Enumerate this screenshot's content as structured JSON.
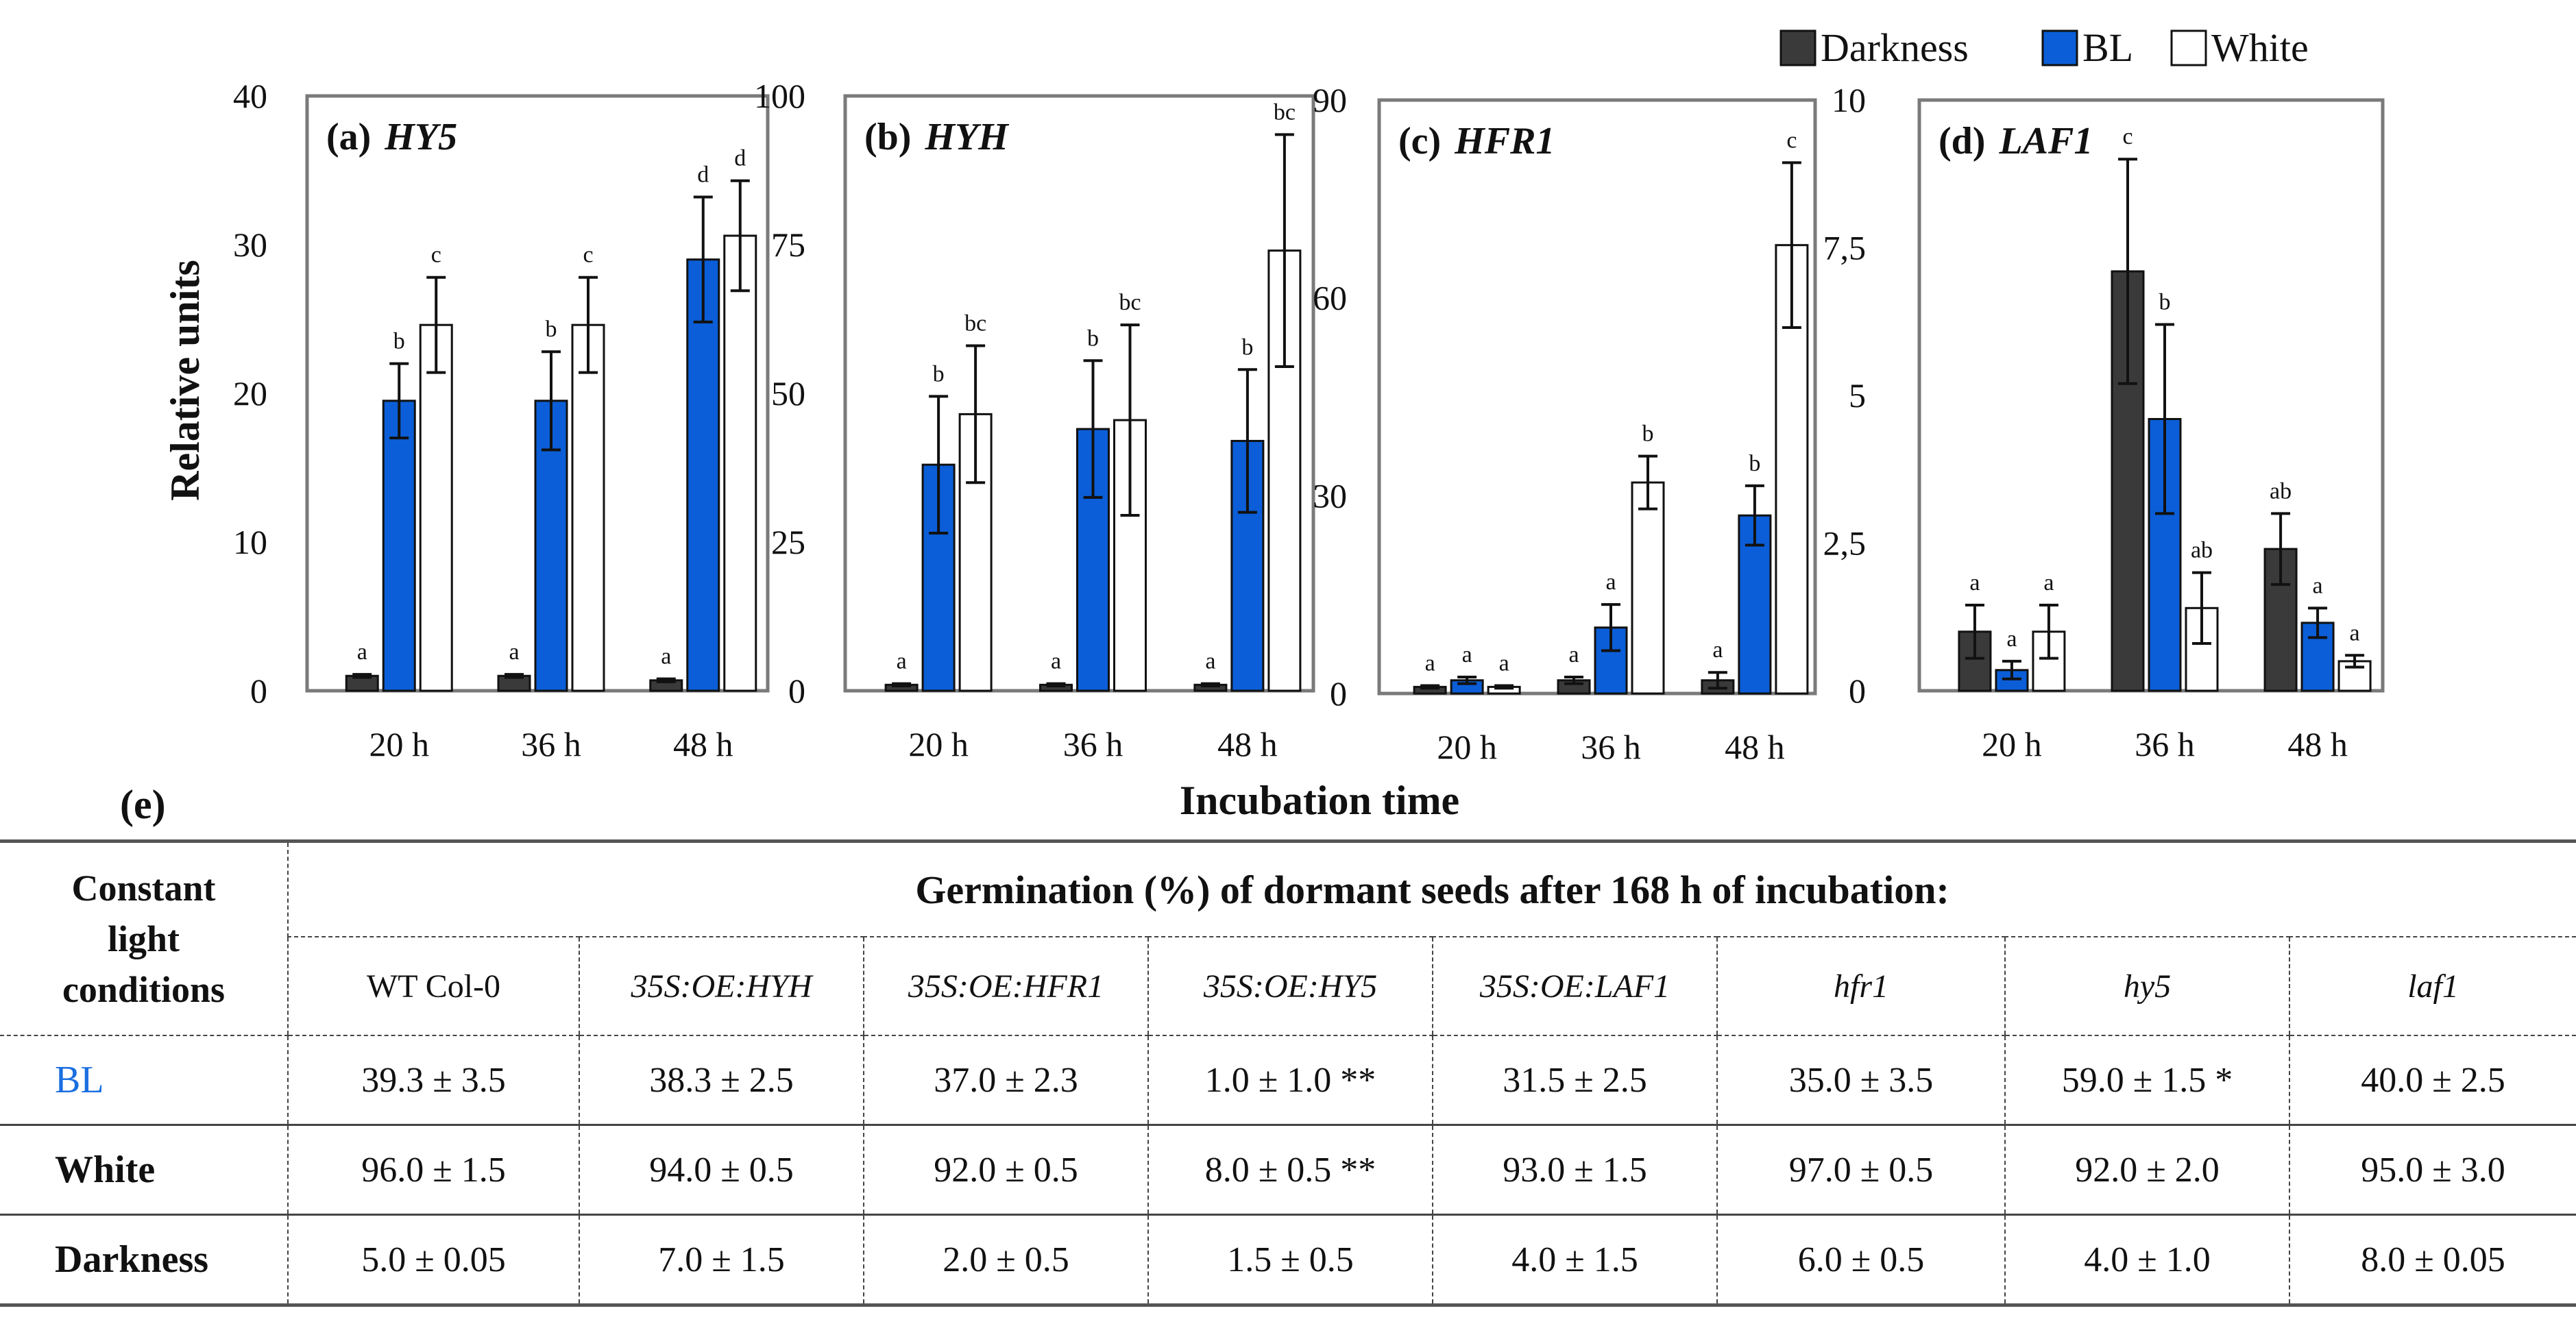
{
  "legend": {
    "items": [
      {
        "label": "Darkness",
        "color": "#3a3a3a",
        "text_color": "#111111"
      },
      {
        "label": "BL",
        "color": "#0b5ed7",
        "text_color": "#1a6fe0"
      },
      {
        "label": "White",
        "color": "#ffffff",
        "text_color": "#111111"
      }
    ]
  },
  "y_axis_title": "Relative units",
  "x_axis_title": "Incubation time",
  "table_label": "(e)",
  "chart_data": [
    {
      "type": "bar",
      "panel_label": "(a)",
      "gene": "HY5",
      "categories": [
        "20 h",
        "36 h",
        "48 h"
      ],
      "ylim": [
        0,
        40
      ],
      "yticks": [
        "0",
        "10",
        "20",
        "30",
        "40"
      ],
      "series": [
        {
          "name": "Darkness",
          "values": [
            1.0,
            1.0,
            0.7
          ],
          "errors": [
            0.1,
            0.1,
            0.1
          ],
          "letters": [
            "a",
            "a",
            "a"
          ]
        },
        {
          "name": "BL",
          "values": [
            19.5,
            19.5,
            29.0
          ],
          "errors": [
            2.5,
            3.3,
            4.2
          ],
          "letters": [
            "b",
            "b",
            "d"
          ]
        },
        {
          "name": "White",
          "values": [
            24.6,
            24.6,
            30.6
          ],
          "errors": [
            3.2,
            3.2,
            3.7
          ],
          "letters": [
            "c",
            "c",
            "d"
          ]
        }
      ]
    },
    {
      "type": "bar",
      "panel_label": "(b)",
      "gene": "HYH",
      "categories": [
        "20 h",
        "36 h",
        "48 h"
      ],
      "ylim": [
        0,
        100
      ],
      "yticks": [
        "0",
        "25",
        "50",
        "75",
        "100"
      ],
      "series": [
        {
          "name": "Darkness",
          "values": [
            1.0,
            1.0,
            1.0
          ],
          "errors": [
            0.2,
            0.2,
            0.2
          ],
          "letters": [
            "a",
            "a",
            "a"
          ]
        },
        {
          "name": "BL",
          "values": [
            38.0,
            44.0,
            42.0
          ],
          "errors": [
            11.5,
            11.5,
            12.0
          ],
          "letters": [
            "b",
            "b",
            "b"
          ]
        },
        {
          "name": "White",
          "values": [
            46.5,
            45.5,
            74.0
          ],
          "errors": [
            11.5,
            16.0,
            19.5
          ],
          "letters": [
            "bc",
            "bc",
            "bc"
          ]
        }
      ]
    },
    {
      "type": "bar",
      "panel_label": "(c)",
      "gene": "HFR1",
      "categories": [
        "20 h",
        "36 h",
        "48 h"
      ],
      "ylim": [
        0,
        90
      ],
      "yticks": [
        "0",
        "30",
        "60",
        "90"
      ],
      "series": [
        {
          "name": "Darkness",
          "values": [
            1.0,
            2.0,
            2.0
          ],
          "errors": [
            0.2,
            0.5,
            1.2
          ],
          "letters": [
            "a",
            "a",
            "a"
          ]
        },
        {
          "name": "BL",
          "values": [
            2.0,
            10.0,
            27.0
          ],
          "errors": [
            0.5,
            3.5,
            4.5
          ],
          "letters": [
            "a",
            "a",
            "b"
          ]
        },
        {
          "name": "White",
          "values": [
            1.0,
            32.0,
            68.0
          ],
          "errors": [
            0.2,
            4.0,
            12.5
          ],
          "letters": [
            "a",
            "b",
            "c"
          ]
        }
      ]
    },
    {
      "type": "bar",
      "panel_label": "(d)",
      "gene": "LAF1",
      "categories": [
        "20 h",
        "36 h",
        "48 h"
      ],
      "ylim": [
        0,
        10
      ],
      "yticks": [
        "0",
        "2,5",
        "5",
        "7,5",
        "10"
      ],
      "series": [
        {
          "name": "Darkness",
          "values": [
            1.0,
            7.1,
            2.4
          ],
          "errors": [
            0.45,
            1.9,
            0.6
          ],
          "letters": [
            "a",
            "c",
            "ab"
          ]
        },
        {
          "name": "BL",
          "values": [
            0.35,
            4.6,
            1.15
          ],
          "errors": [
            0.15,
            1.6,
            0.25
          ],
          "letters": [
            "a",
            "b",
            "a"
          ]
        },
        {
          "name": "White",
          "values": [
            1.0,
            1.4,
            0.5
          ],
          "errors": [
            0.45,
            0.6,
            0.1
          ],
          "letters": [
            "a",
            "ab",
            "a"
          ]
        }
      ]
    }
  ],
  "table": {
    "corner_lines": [
      "Constant",
      "light",
      "conditions"
    ],
    "main_header": "Germination (%) of dormant seeds after 168 h of incubation:",
    "columns": [
      {
        "label": "WT Col-0",
        "italic": false
      },
      {
        "label": "35S:OE:HYH",
        "italic": true
      },
      {
        "label": "35S:OE:HFR1",
        "italic": true
      },
      {
        "label": "35S:OE:HY5",
        "italic": true
      },
      {
        "label": "35S:OE:LAF1",
        "italic": true
      },
      {
        "label": "hfr1",
        "italic": true
      },
      {
        "label": "hy5",
        "italic": true
      },
      {
        "label": "laf1",
        "italic": true
      }
    ],
    "rows": [
      {
        "label": "BL",
        "label_color": "#1a6fe0",
        "bold": false,
        "values": [
          "39.3 ± 3.5",
          "38.3 ± 2.5",
          "37.0 ± 2.3",
          "1.0 ± 1.0 **",
          "31.5 ± 2.5",
          "35.0 ± 3.5",
          "59.0 ± 1.5 *",
          "40.0 ± 2.5"
        ]
      },
      {
        "label": "White",
        "label_color": "#111111",
        "bold": true,
        "values": [
          "96.0 ± 1.5",
          "94.0 ± 0.5",
          "92.0 ± 0.5",
          "8.0 ± 0.5 **",
          "93.0 ± 1.5",
          "97.0 ± 0.5",
          "92.0 ± 2.0",
          "95.0 ± 3.0"
        ]
      },
      {
        "label": "Darkness",
        "label_color": "#111111",
        "bold": true,
        "values": [
          "5.0 ± 0.05",
          "7.0 ± 1.5",
          "2.0 ± 0.5",
          "1.5 ± 0.5",
          "4.0 ± 1.5",
          "6.0 ± 0.5",
          "4.0 ± 1.0",
          "8.0 ± 0.05"
        ]
      }
    ]
  }
}
